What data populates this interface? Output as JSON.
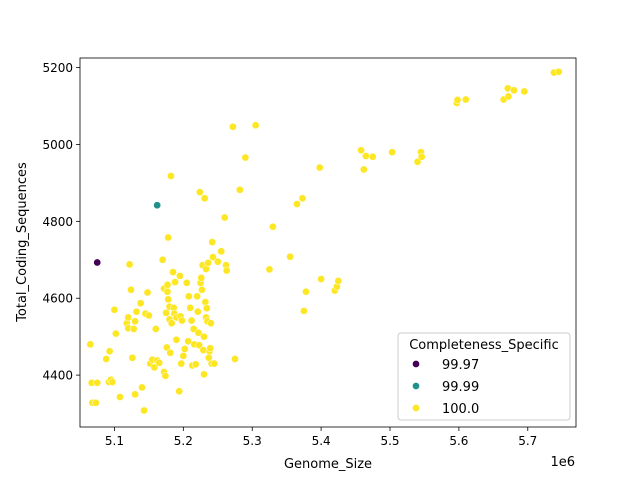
{
  "chart_data": {
    "type": "scatter",
    "xlabel": "Genome_Size",
    "ylabel": "Total_Coding_Sequences",
    "x_offset_label": "1e6",
    "xlim": [
      5.05,
      5.77
    ],
    "ylim": [
      4265,
      5225
    ],
    "x_ticks": [
      5.1,
      5.2,
      5.3,
      5.4,
      5.5,
      5.6,
      5.7
    ],
    "x_tick_labels": [
      "5.1",
      "5.2",
      "5.3",
      "5.4",
      "5.5",
      "5.6",
      "5.7"
    ],
    "y_ticks": [
      4400,
      4600,
      4800,
      5000,
      5200
    ],
    "y_tick_labels": [
      "4400",
      "4600",
      "4800",
      "5000",
      "5200"
    ],
    "grid": false,
    "legend": {
      "title": "Completeness_Specific",
      "placement": "lower-right",
      "entries": [
        {
          "label": "99.97",
          "color": "#440154"
        },
        {
          "label": "99.99",
          "color": "#21918c"
        },
        {
          "label": "100.0",
          "color": "#fde725"
        }
      ]
    },
    "series": [
      {
        "name": "99.97",
        "color": "#440154",
        "points": [
          [
            5.075,
            4693
          ]
        ]
      },
      {
        "name": "99.99",
        "color": "#21918c",
        "points": [
          [
            5.162,
            4842
          ]
        ]
      },
      {
        "name": "100.0",
        "color": "#fde725",
        "points": [
          [
            5.065,
            4480
          ],
          [
            5.067,
            4380
          ],
          [
            5.068,
            4328
          ],
          [
            5.073,
            4328
          ],
          [
            5.075,
            4380
          ],
          [
            5.088,
            4442
          ],
          [
            5.092,
            4382
          ],
          [
            5.095,
            4388
          ],
          [
            5.097,
            4382
          ],
          [
            5.093,
            4462
          ],
          [
            5.1,
            4570
          ],
          [
            5.102,
            4508
          ],
          [
            5.108,
            4343
          ],
          [
            5.118,
            4535
          ],
          [
            5.12,
            4550
          ],
          [
            5.12,
            4522
          ],
          [
            5.122,
            4688
          ],
          [
            5.124,
            4622
          ],
          [
            5.126,
            4445
          ],
          [
            5.128,
            4520
          ],
          [
            5.13,
            4540
          ],
          [
            5.132,
            4565
          ],
          [
            5.13,
            4350
          ],
          [
            5.138,
            4587
          ],
          [
            5.14,
            4368
          ],
          [
            5.143,
            4308
          ],
          [
            5.145,
            4560
          ],
          [
            5.148,
            4615
          ],
          [
            5.15,
            4555
          ],
          [
            5.152,
            4430
          ],
          [
            5.155,
            4440
          ],
          [
            5.158,
            4420
          ],
          [
            5.16,
            4520
          ],
          [
            5.162,
            4438
          ],
          [
            5.165,
            4432
          ],
          [
            5.17,
            4700
          ],
          [
            5.172,
            4625
          ],
          [
            5.172,
            4408
          ],
          [
            5.174,
            4398
          ],
          [
            5.175,
            4562
          ],
          [
            5.176,
            4472
          ],
          [
            5.177,
            4635
          ],
          [
            5.177,
            4617
          ],
          [
            5.178,
            4597
          ],
          [
            5.178,
            4758
          ],
          [
            5.18,
            4578
          ],
          [
            5.18,
            4545
          ],
          [
            5.181,
            4458
          ],
          [
            5.182,
            4918
          ],
          [
            5.183,
            4535
          ],
          [
            5.185,
            4668
          ],
          [
            5.186,
            4575
          ],
          [
            5.187,
            4560
          ],
          [
            5.188,
            4642
          ],
          [
            5.19,
            4550
          ],
          [
            5.19,
            4492
          ],
          [
            5.194,
            4358
          ],
          [
            5.195,
            4658
          ],
          [
            5.196,
            4553
          ],
          [
            5.197,
            4430
          ],
          [
            5.198,
            4542
          ],
          [
            5.2,
            4450
          ],
          [
            5.202,
            4468
          ],
          [
            5.205,
            4640
          ],
          [
            5.207,
            4488
          ],
          [
            5.208,
            4605
          ],
          [
            5.21,
            4575
          ],
          [
            5.212,
            4542
          ],
          [
            5.213,
            4425
          ],
          [
            5.215,
            4520
          ],
          [
            5.216,
            4480
          ],
          [
            5.218,
            4428
          ],
          [
            5.22,
            4605
          ],
          [
            5.221,
            4565
          ],
          [
            5.222,
            4510
          ],
          [
            5.223,
            4478
          ],
          [
            5.224,
            4876
          ],
          [
            5.225,
            4640
          ],
          [
            5.226,
            4653
          ],
          [
            5.227,
            4622
          ],
          [
            5.228,
            4686
          ],
          [
            5.229,
            4465
          ],
          [
            5.23,
            4402
          ],
          [
            5.23,
            4500
          ],
          [
            5.231,
            4860
          ],
          [
            5.232,
            4590
          ],
          [
            5.233,
            4550
          ],
          [
            5.233,
            4676
          ],
          [
            5.234,
            4574
          ],
          [
            5.235,
            4540
          ],
          [
            5.236,
            4692
          ],
          [
            5.237,
            4445
          ],
          [
            5.238,
            4462
          ],
          [
            5.239,
            4470
          ],
          [
            5.24,
            4535
          ],
          [
            5.241,
            4430
          ],
          [
            5.242,
            4746
          ],
          [
            5.243,
            4707
          ],
          [
            5.245,
            4430
          ],
          [
            5.25,
            4695
          ],
          [
            5.255,
            4722
          ],
          [
            5.26,
            4810
          ],
          [
            5.262,
            4686
          ],
          [
            5.263,
            4672
          ],
          [
            5.272,
            5046
          ],
          [
            5.275,
            4442
          ],
          [
            5.282,
            4882
          ],
          [
            5.29,
            4966
          ],
          [
            5.305,
            5050
          ],
          [
            5.325,
            4675
          ],
          [
            5.33,
            4786
          ],
          [
            5.355,
            4708
          ],
          [
            5.365,
            4845
          ],
          [
            5.373,
            4860
          ],
          [
            5.375,
            4567
          ],
          [
            5.378,
            4617
          ],
          [
            5.398,
            4940
          ],
          [
            5.4,
            4650
          ],
          [
            5.42,
            4620
          ],
          [
            5.423,
            4630
          ],
          [
            5.425,
            4645
          ],
          [
            5.458,
            4985
          ],
          [
            5.462,
            4935
          ],
          [
            5.465,
            4970
          ],
          [
            5.475,
            4968
          ],
          [
            5.503,
            4980
          ],
          [
            5.54,
            4955
          ],
          [
            5.545,
            4980
          ],
          [
            5.546,
            4968
          ],
          [
            5.597,
            5108
          ],
          [
            5.598,
            5116
          ],
          [
            5.61,
            5117
          ],
          [
            5.665,
            5117
          ],
          [
            5.671,
            5146
          ],
          [
            5.672,
            5125
          ],
          [
            5.68,
            5141
          ],
          [
            5.695,
            5138
          ],
          [
            5.738,
            5187
          ],
          [
            5.745,
            5189
          ]
        ]
      }
    ]
  }
}
